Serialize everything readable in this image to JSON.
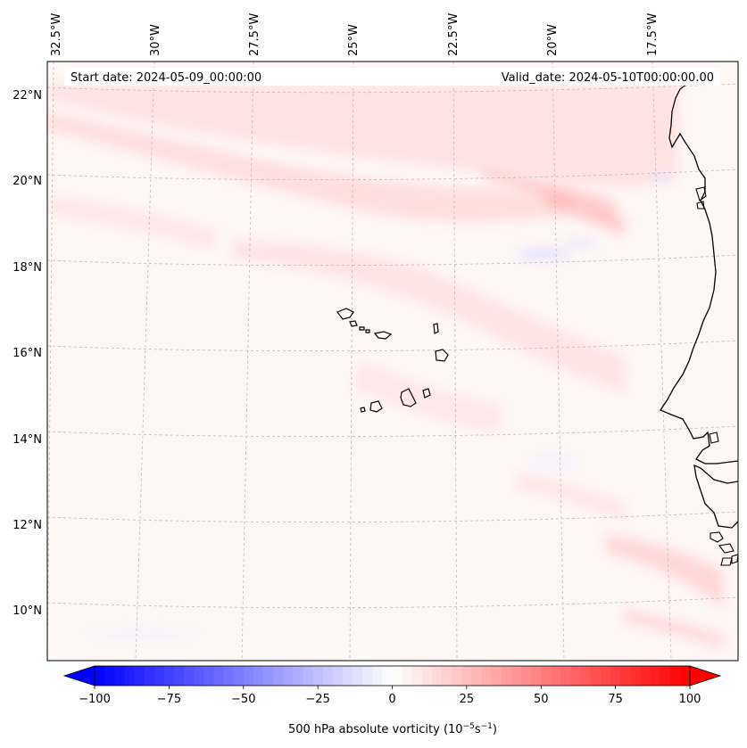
{
  "header": {
    "start_date": "Start date: 2024-05-09_00:00:00",
    "valid_date": "Valid_date: 2024-05-10T00:00:00.00"
  },
  "lon_labels": [
    "32.5°W",
    "30°W",
    "27.5°W",
    "25°W",
    "22.5°W",
    "20°W",
    "17.5°W"
  ],
  "lat_labels": [
    "22°N",
    "20°N",
    "18°N",
    "16°N",
    "14°N",
    "12°N",
    "10°N"
  ],
  "colorbar": {
    "label": "500 hPa absolute vorticity (10",
    "label_exp1": "−5",
    "label_mid": "s",
    "label_exp2": "−1",
    "label_end": ")",
    "ticks": [
      "−100",
      "−75",
      "−50",
      "−25",
      "0",
      "25",
      "50",
      "75",
      "100"
    ],
    "tick_values": [
      -100,
      -75,
      -50,
      -25,
      0,
      25,
      50,
      75,
      100
    ],
    "min": -100,
    "max": 100,
    "levels": 61,
    "colormap": "bwr",
    "color_min": "#0000ff",
    "color_mid": "#ffffff",
    "color_max": "#ff0000"
  },
  "map": {
    "projection": "lambert-conformal",
    "lon_range": [
      -33,
      -15.5
    ],
    "lat_range": [
      9,
      22.7
    ],
    "gridlines": "dashed",
    "coastline_color": "#000000",
    "field": "500 hPa absolute vorticity, mostly weak positive values (pale pink) with a few weak negative patches"
  }
}
